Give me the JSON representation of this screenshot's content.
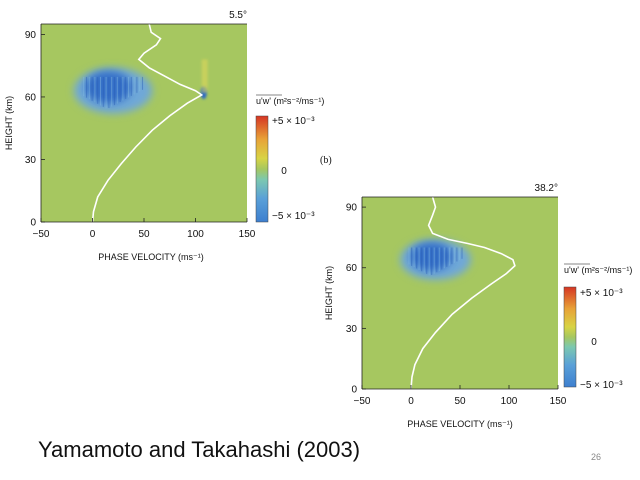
{
  "chart_data": [
    {
      "type": "heatmap",
      "title": "",
      "angle_label": "5.5°",
      "xlabel": "PHASE VELOCITY (ms⁻¹)",
      "ylabel": "HEIGHT (km)",
      "xlim": [
        -50,
        150
      ],
      "ylim": [
        0,
        95
      ],
      "xticks": [
        "-50",
        "0",
        "50",
        "100",
        "150"
      ],
      "yticks": [
        "0",
        "30",
        "60",
        "90"
      ],
      "colorbar": {
        "label": "u'w' (m²s⁻²/ms⁻¹)",
        "max_label": "+5 × 10⁻³",
        "mid_label": "0",
        "min_label": "−5 × 10⁻³",
        "range": [
          -0.005,
          0.005
        ]
      },
      "wind_profile": [
        [
          0,
          0
        ],
        [
          1,
          5
        ],
        [
          5,
          12
        ],
        [
          15,
          20
        ],
        [
          28,
          28
        ],
        [
          42,
          36
        ],
        [
          58,
          44
        ],
        [
          75,
          51
        ],
        [
          92,
          57
        ],
        [
          106,
          61
        ],
        [
          100,
          63
        ],
        [
          85,
          66
        ],
        [
          70,
          70
        ],
        [
          55,
          74
        ],
        [
          45,
          78
        ],
        [
          50,
          81
        ],
        [
          62,
          85
        ],
        [
          66,
          88
        ],
        [
          57,
          91
        ],
        [
          55,
          95
        ]
      ],
      "features": [
        {
          "kind": "negative",
          "center": [
            20,
            63
          ],
          "radius": [
            38,
            11
          ],
          "amplitude": -1.0
        },
        {
          "kind": "negative",
          "center": [
            108,
            62
          ],
          "radius": [
            3,
            3
          ],
          "amplitude": -0.9
        }
      ],
      "panel_label": ""
    },
    {
      "type": "heatmap",
      "title": "",
      "angle_label": "38.2°",
      "xlabel": "PHASE VELOCITY (ms⁻¹)",
      "ylabel": "HEIGHT (km)",
      "xlim": [
        -50,
        150
      ],
      "ylim": [
        0,
        95
      ],
      "xticks": [
        "-50",
        "0",
        "50",
        "100",
        "150"
      ],
      "yticks": [
        "0",
        "30",
        "60",
        "90"
      ],
      "colorbar": {
        "label": "u'w' (m²s⁻²/ms⁻¹)",
        "max_label": "+5 × 10⁻³",
        "mid_label": "0",
        "min_label": "−5 × 10⁻³",
        "range": [
          -0.005,
          0.005
        ]
      },
      "wind_profile": [
        [
          0,
          0
        ],
        [
          1,
          6
        ],
        [
          4,
          12
        ],
        [
          12,
          20
        ],
        [
          25,
          28
        ],
        [
          42,
          37
        ],
        [
          62,
          45
        ],
        [
          82,
          52
        ],
        [
          97,
          57
        ],
        [
          106,
          61
        ],
        [
          104,
          64
        ],
        [
          92,
          67
        ],
        [
          75,
          70
        ],
        [
          58,
          72
        ],
        [
          38,
          74
        ],
        [
          22,
          77
        ],
        [
          18,
          81
        ],
        [
          22,
          86
        ],
        [
          25,
          90
        ],
        [
          22,
          95
        ]
      ],
      "features": [
        {
          "kind": "negative",
          "center": [
            25,
            64
          ],
          "radius": [
            36,
            10
          ],
          "amplitude": -1.0
        }
      ],
      "panel_label": "(b)"
    }
  ],
  "citation": "Yamamoto and Takahashi (2003)",
  "page_number": "26",
  "colors": {
    "background": "#a6c760",
    "negative": "#3d7fcf",
    "positive": "#d63524",
    "profile": "#ffffff"
  }
}
